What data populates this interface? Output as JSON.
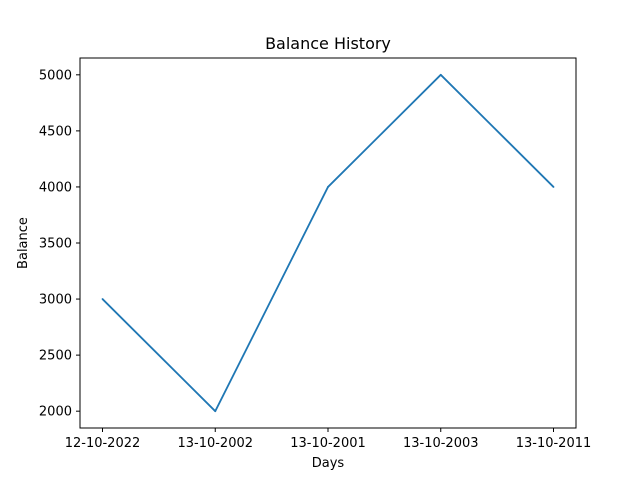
{
  "chart_data": {
    "type": "line",
    "title": "Balance History",
    "xlabel": "Days",
    "ylabel": "Balance",
    "categories": [
      "12-10-2022",
      "13-10-2002",
      "13-10-2001",
      "13-10-2003",
      "13-10-2011"
    ],
    "series": [
      {
        "values": [
          3000,
          2000,
          4000,
          5000,
          4000
        ],
        "color": "#1f77b4"
      }
    ],
    "ylim": [
      1850,
      5150
    ],
    "yticks": [
      2000,
      2500,
      3000,
      3500,
      4000,
      4500,
      5000
    ],
    "grid": false,
    "legend": "none"
  }
}
